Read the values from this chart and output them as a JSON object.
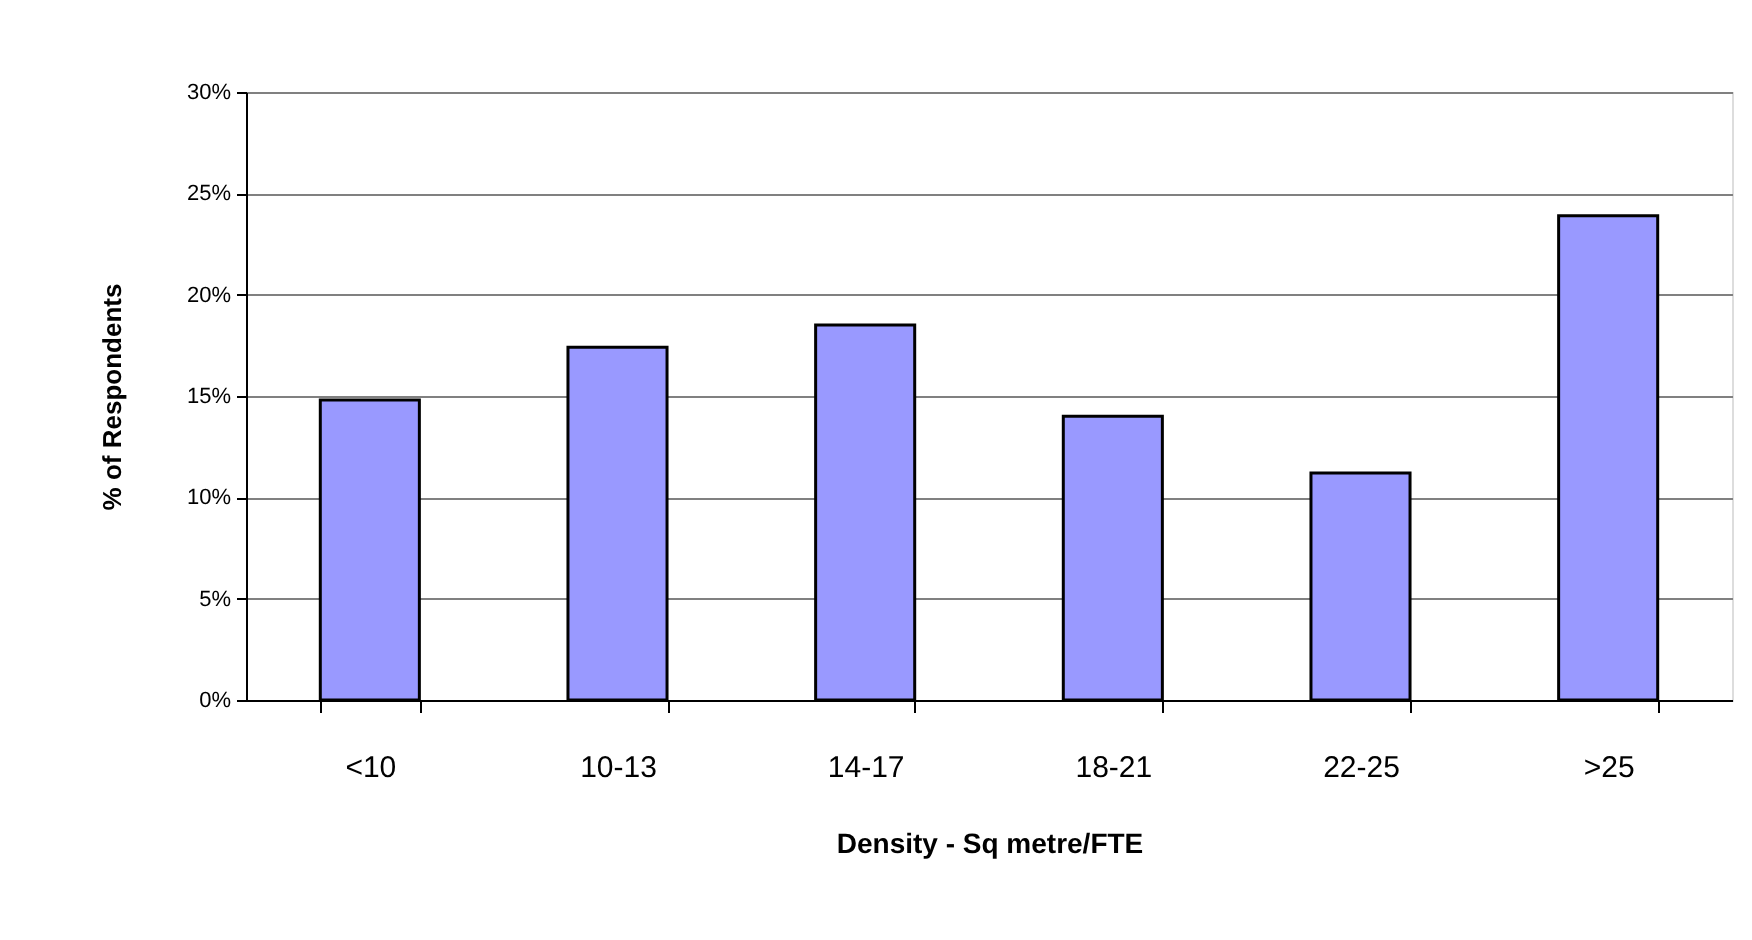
{
  "chart_data": {
    "type": "bar",
    "xlabel": "Density - Sq metre/FTE",
    "ylabel": "% of Respondents",
    "categories": [
      "<10",
      "10-13",
      "14-17",
      "18-21",
      "22-25",
      ">25"
    ],
    "values": [
      14.8,
      17.4,
      18.5,
      14.0,
      11.2,
      23.9
    ],
    "color": "#9999ff",
    "ylim": [
      0,
      30
    ],
    "yticks": [
      {
        "value": 0,
        "label": "0%"
      },
      {
        "value": 5,
        "label": "5%"
      },
      {
        "value": 10,
        "label": "10%"
      },
      {
        "value": 15,
        "label": "15%"
      },
      {
        "value": 20,
        "label": "20%"
      },
      {
        "value": 25,
        "label": "25%"
      },
      {
        "value": 30,
        "label": "30%"
      }
    ],
    "grid": "y"
  }
}
